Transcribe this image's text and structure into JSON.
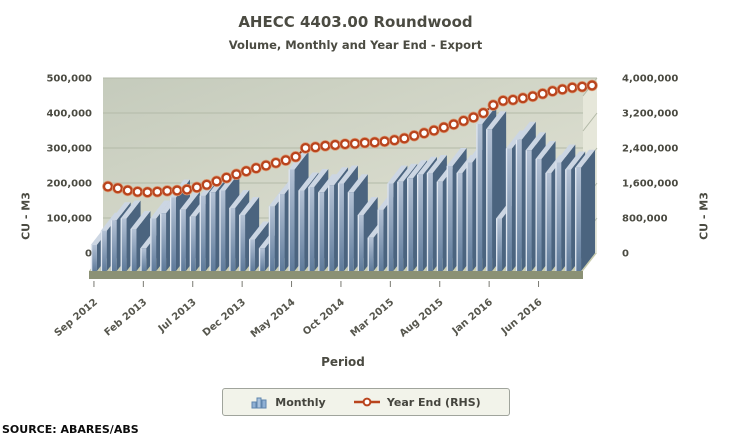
{
  "source": "SOURCE: ABARES/ABS",
  "colors": {
    "plot_bg_dark": "#c5cbbc",
    "plot_bg_light": "#e2e3d5",
    "gridline": "#b3baa8",
    "side_wall": "#e6e7da",
    "floor": "#c9ccae",
    "floor_edge": "#8b9175",
    "bar_front_top": "#b4c2d5",
    "bar_front_bottom": "#5f7b9b",
    "bar_side": "#4b647f",
    "bar_top": "#ccd6e3",
    "bar_highlight": "#dfe6ef",
    "line": "#9c3413",
    "marker_ring": "#b9441d",
    "marker_halo": "#dc9a74",
    "marker_fill": "#ffffff",
    "text": "#4b4b42"
  },
  "chart_data": {
    "type": "bar+line",
    "title": "AHECC 4403.00 Roundwood",
    "subtitle": "Volume, Monthly and Year End - Export",
    "xlabel": "Period",
    "ylabel_left": "CU - M3",
    "ylabel_right": "CU - M3",
    "ylim_left": [
      0,
      500000
    ],
    "ylim_right": [
      0,
      4000000
    ],
    "left_ticks": [
      "0",
      "100,000",
      "200,000",
      "300,000",
      "400,000",
      "500,000"
    ],
    "right_ticks": [
      "0",
      "800,000",
      "1,600,000",
      "2,400,000",
      "3,200,000",
      "4,000,000"
    ],
    "x_tick_every": 5,
    "x_tick_labels": [
      "Sep 2012",
      "Feb 2013",
      "Jul 2013",
      "Dec 2013",
      "May 2014",
      "Oct 2014",
      "Mar 2015",
      "Aug 2015",
      "Jan 2016",
      "Jun 2016"
    ],
    "grid": true,
    "legend_position": "bottom",
    "categories": [
      "Sep 2012",
      "Oct 2012",
      "Nov 2012",
      "Dec 2012",
      "Jan 2013",
      "Feb 2013",
      "Mar 2013",
      "Apr 2013",
      "May 2013",
      "Jun 2013",
      "Jul 2013",
      "Aug 2013",
      "Sep 2013",
      "Oct 2013",
      "Nov 2013",
      "Dec 2013",
      "Jan 2014",
      "Feb 2014",
      "Mar 2014",
      "Apr 2014",
      "May 2014",
      "Jun 2014",
      "Jul 2014",
      "Aug 2014",
      "Sep 2014",
      "Oct 2014",
      "Nov 2014",
      "Dec 2014",
      "Jan 2015",
      "Feb 2015",
      "Mar 2015",
      "Apr 2015",
      "May 2015",
      "Jun 2015",
      "Jul 2015",
      "Aug 2015",
      "Sep 2015",
      "Oct 2015",
      "Nov 2015",
      "Dec 2015",
      "Jan 2016",
      "Feb 2016",
      "Mar 2016",
      "Apr 2016",
      "May 2016",
      "Jun 2016",
      "Jul 2016",
      "Aug 2016",
      "Sep 2016",
      "Oct 2016"
    ],
    "series": [
      {
        "name": "Monthly",
        "type": "bar",
        "axis": "left",
        "values": [
          75000,
          115000,
          145000,
          150000,
          120000,
          65000,
          150000,
          165000,
          210000,
          175000,
          155000,
          215000,
          225000,
          230000,
          180000,
          160000,
          90000,
          65000,
          185000,
          220000,
          290000,
          230000,
          240000,
          225000,
          245000,
          250000,
          225000,
          160000,
          95000,
          175000,
          250000,
          255000,
          265000,
          275000,
          280000,
          255000,
          300000,
          280000,
          310000,
          420000,
          405000,
          150000,
          350000,
          375000,
          345000,
          320000,
          280000,
          310000,
          290000,
          295000
        ]
      },
      {
        "name": "Year End (RHS)",
        "type": "line",
        "axis": "right",
        "values": [
          1520000,
          1480000,
          1430000,
          1400000,
          1390000,
          1400000,
          1420000,
          1430000,
          1450000,
          1500000,
          1560000,
          1640000,
          1720000,
          1800000,
          1870000,
          1940000,
          2000000,
          2060000,
          2120000,
          2200000,
          2400000,
          2420000,
          2450000,
          2470000,
          2490000,
          2500000,
          2520000,
          2530000,
          2550000,
          2580000,
          2620000,
          2680000,
          2740000,
          2800000,
          2870000,
          2940000,
          3020000,
          3100000,
          3200000,
          3380000,
          3480000,
          3500000,
          3540000,
          3580000,
          3640000,
          3700000,
          3740000,
          3780000,
          3800000,
          3830000
        ]
      }
    ]
  }
}
